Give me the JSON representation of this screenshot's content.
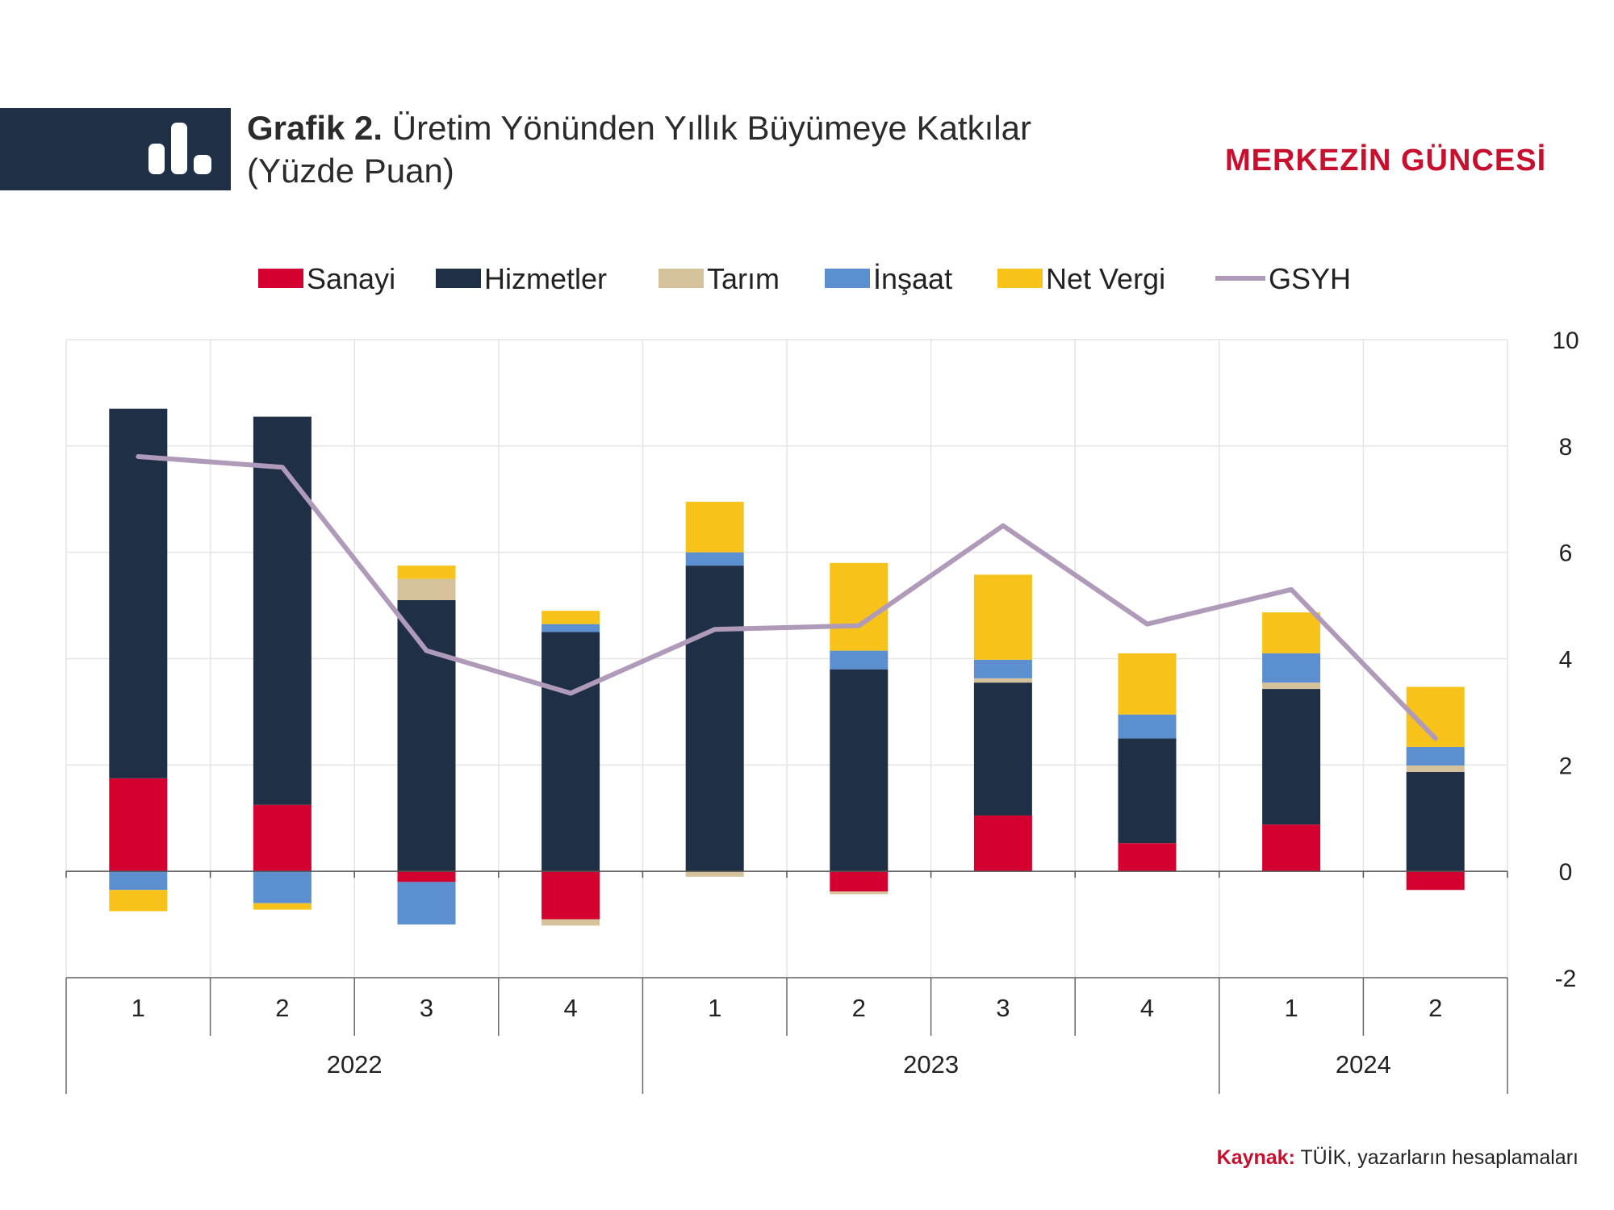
{
  "header": {
    "title_label": "Grafik 2.",
    "title_text": "Üretim Yönünden Yıllık Büyümeye Katkılar",
    "subtitle": "(Yüzde Puan)",
    "brand": "MERKEZİN GÜNCESİ",
    "logo_icon": "bar-chart-icon"
  },
  "source": {
    "label": "Kaynak:",
    "text": "TÜİK, yazarların hesaplamaları"
  },
  "chart_data": {
    "type": "bar",
    "stacked": true,
    "categories": [
      "1",
      "2",
      "3",
      "4",
      "1",
      "2",
      "3",
      "4",
      "1",
      "2"
    ],
    "category_groups": [
      {
        "label": "2022",
        "span": 4
      },
      {
        "label": "2023",
        "span": 4
      },
      {
        "label": "2024",
        "span": 2
      }
    ],
    "ylim": [
      -2,
      10
    ],
    "yticks": [
      -2,
      0,
      2,
      4,
      6,
      8,
      10
    ],
    "y_axis_position": "right",
    "grid": true,
    "legend_position": "top",
    "series": [
      {
        "name": "Sanayi",
        "color": "#d4002f",
        "values": [
          1.75,
          1.25,
          -0.2,
          -0.9,
          0.0,
          -0.38,
          1.05,
          0.53,
          0.88,
          -0.35
        ]
      },
      {
        "name": "Hizmetler",
        "color": "#1f2f45",
        "values": [
          6.95,
          7.3,
          5.1,
          4.5,
          5.75,
          3.8,
          2.5,
          1.97,
          2.55,
          1.87
        ]
      },
      {
        "name": "Tarım",
        "color": "#d5c19a",
        "values": [
          0.0,
          0.0,
          0.4,
          -0.12,
          -0.1,
          -0.05,
          0.08,
          0.0,
          0.12,
          0.12
        ]
      },
      {
        "name": "İnşaat",
        "color": "#5b8fcf",
        "values": [
          -0.35,
          -0.6,
          -0.8,
          0.15,
          0.25,
          0.35,
          0.35,
          0.45,
          0.55,
          0.35
        ]
      },
      {
        "name": "Net Vergi",
        "color": "#f7c31a",
        "values": [
          -0.4,
          -0.12,
          0.25,
          0.25,
          0.95,
          1.65,
          1.6,
          1.15,
          0.77,
          1.13
        ]
      }
    ],
    "line_series": {
      "name": "GSYH",
      "color": "#b09ab9",
      "values": [
        7.8,
        7.6,
        4.15,
        3.35,
        4.55,
        4.62,
        6.5,
        4.65,
        5.3,
        2.5
      ]
    }
  }
}
